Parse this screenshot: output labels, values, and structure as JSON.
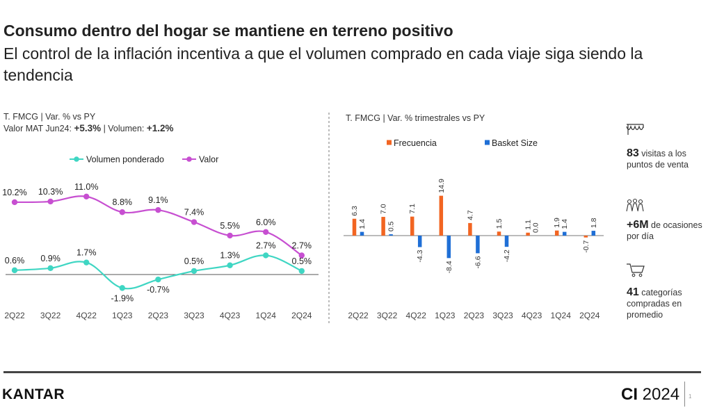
{
  "header": {
    "title": "Consumo dentro del hogar se mantiene en terreno positivo",
    "subtitle": "El control de la inflación incentiva a que el volumen comprado en cada viaje siga siendo la tendencia"
  },
  "left_note": {
    "line1": "T. FMCG | Var. % vs PY",
    "line2_prefix": "Valor MAT Jun24: ",
    "valor": "+5.3%",
    "line2_mid": " | Volumen: ",
    "volumen": "+1.2%"
  },
  "right_note": {
    "line1": "T. FMCG | Var. % trimestrales vs PY"
  },
  "colors": {
    "valor": "#c74fd1",
    "volumen": "#3fd6c3",
    "frecuencia": "#f26522",
    "basket": "#1f6fd6"
  },
  "chart_data": [
    {
      "type": "line",
      "categories": [
        "2Q22",
        "3Q22",
        "4Q22",
        "1Q23",
        "2Q23",
        "3Q23",
        "4Q23",
        "1Q24",
        "2Q24"
      ],
      "series": [
        {
          "name": "Volumen ponderado",
          "values": [
            0.6,
            0.9,
            1.7,
            -1.9,
            -0.7,
            0.5,
            1.3,
            2.7,
            0.5
          ],
          "labels": [
            "0.6%",
            "0.9%",
            "1.7%",
            "-1.9%",
            "-0.7%",
            "0.5%",
            "1.3%",
            "2.7%",
            "0.5%"
          ]
        },
        {
          "name": "Valor",
          "values": [
            10.2,
            10.3,
            11.0,
            8.8,
            9.1,
            7.4,
            5.5,
            6.0,
            2.7
          ],
          "labels": [
            "10.2%",
            "10.3%",
            "11.0%",
            "8.8%",
            "9.1%",
            "7.4%",
            "5.5%",
            "6.0%",
            "2.7%"
          ]
        }
      ]
    },
    {
      "type": "bar",
      "categories": [
        "2Q22",
        "3Q22",
        "4Q22",
        "1Q23",
        "2Q23",
        "3Q23",
        "4Q23",
        "1Q24",
        "2Q24"
      ],
      "series": [
        {
          "name": "Frecuencia",
          "values": [
            6.3,
            7.0,
            7.1,
            14.9,
            4.7,
            1.5,
            1.1,
            1.9,
            -0.7
          ],
          "labels": [
            "6.3",
            "7.0",
            "7.1",
            "14.9",
            "4.7",
            "1.5",
            "1.1",
            "1.9",
            "-0.7"
          ]
        },
        {
          "name": "Basket Size",
          "values": [
            1.4,
            0.5,
            -4.3,
            -8.4,
            -6.6,
            -4.2,
            0.0,
            1.4,
            1.8
          ],
          "labels": [
            "1.4",
            "0.5",
            "-4.3",
            "-8.4",
            "-6.6",
            "-4.2",
            "0.0",
            "1.4",
            "1.8"
          ]
        }
      ]
    }
  ],
  "side": [
    {
      "icon": "store-awning-icon",
      "bold": "83",
      "text": " visitas a los puntos de venta"
    },
    {
      "icon": "people-group-icon",
      "bold": "+6M",
      "text": " de ocasiones por día"
    },
    {
      "icon": "shopping-cart-icon",
      "bold": "41",
      "text": " categorías compradas en promedio"
    }
  ],
  "footer": {
    "brand": "KANTAR",
    "ci_prefix": "CI",
    "ci_year": " 2024",
    "page": "1"
  }
}
